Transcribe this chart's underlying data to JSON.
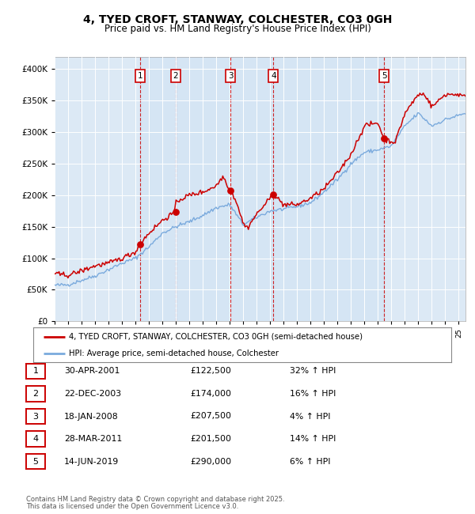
{
  "title": "4, TYED CROFT, STANWAY, COLCHESTER, CO3 0GH",
  "subtitle": "Price paid vs. HM Land Registry's House Price Index (HPI)",
  "legend_red": "4, TYED CROFT, STANWAY, COLCHESTER, CO3 0GH (semi-detached house)",
  "legend_blue": "HPI: Average price, semi-detached house, Colchester",
  "footer_line1": "Contains HM Land Registry data © Crown copyright and database right 2025.",
  "footer_line2": "This data is licensed under the Open Government Licence v3.0.",
  "transactions": [
    {
      "num": 1,
      "date": "30-APR-2001",
      "price": 122500,
      "pct": "32%",
      "dir": "↑",
      "year": 2001.33
    },
    {
      "num": 2,
      "date": "22-DEC-2003",
      "price": 174000,
      "pct": "16%",
      "dir": "↑",
      "year": 2003.97
    },
    {
      "num": 3,
      "date": "18-JAN-2008",
      "price": 207500,
      "pct": "4%",
      "dir": "↑",
      "year": 2008.05
    },
    {
      "num": 4,
      "date": "28-MAR-2011",
      "price": 201500,
      "pct": "14%",
      "dir": "↑",
      "year": 2011.24
    },
    {
      "num": 5,
      "date": "14-JUN-2019",
      "price": 290000,
      "pct": "6%",
      "dir": "↑",
      "year": 2019.45
    }
  ],
  "ylim": [
    0,
    420000
  ],
  "xlim_start": 1995.0,
  "xlim_end": 2025.5,
  "background_color": "#ffffff",
  "chart_bg": "#dce9f5",
  "grid_color": "#ffffff",
  "red_color": "#cc0000",
  "blue_color": "#7aaadd",
  "dashed_color": "#cc0000",
  "title_fontsize": 10,
  "subtitle_fontsize": 8.5
}
